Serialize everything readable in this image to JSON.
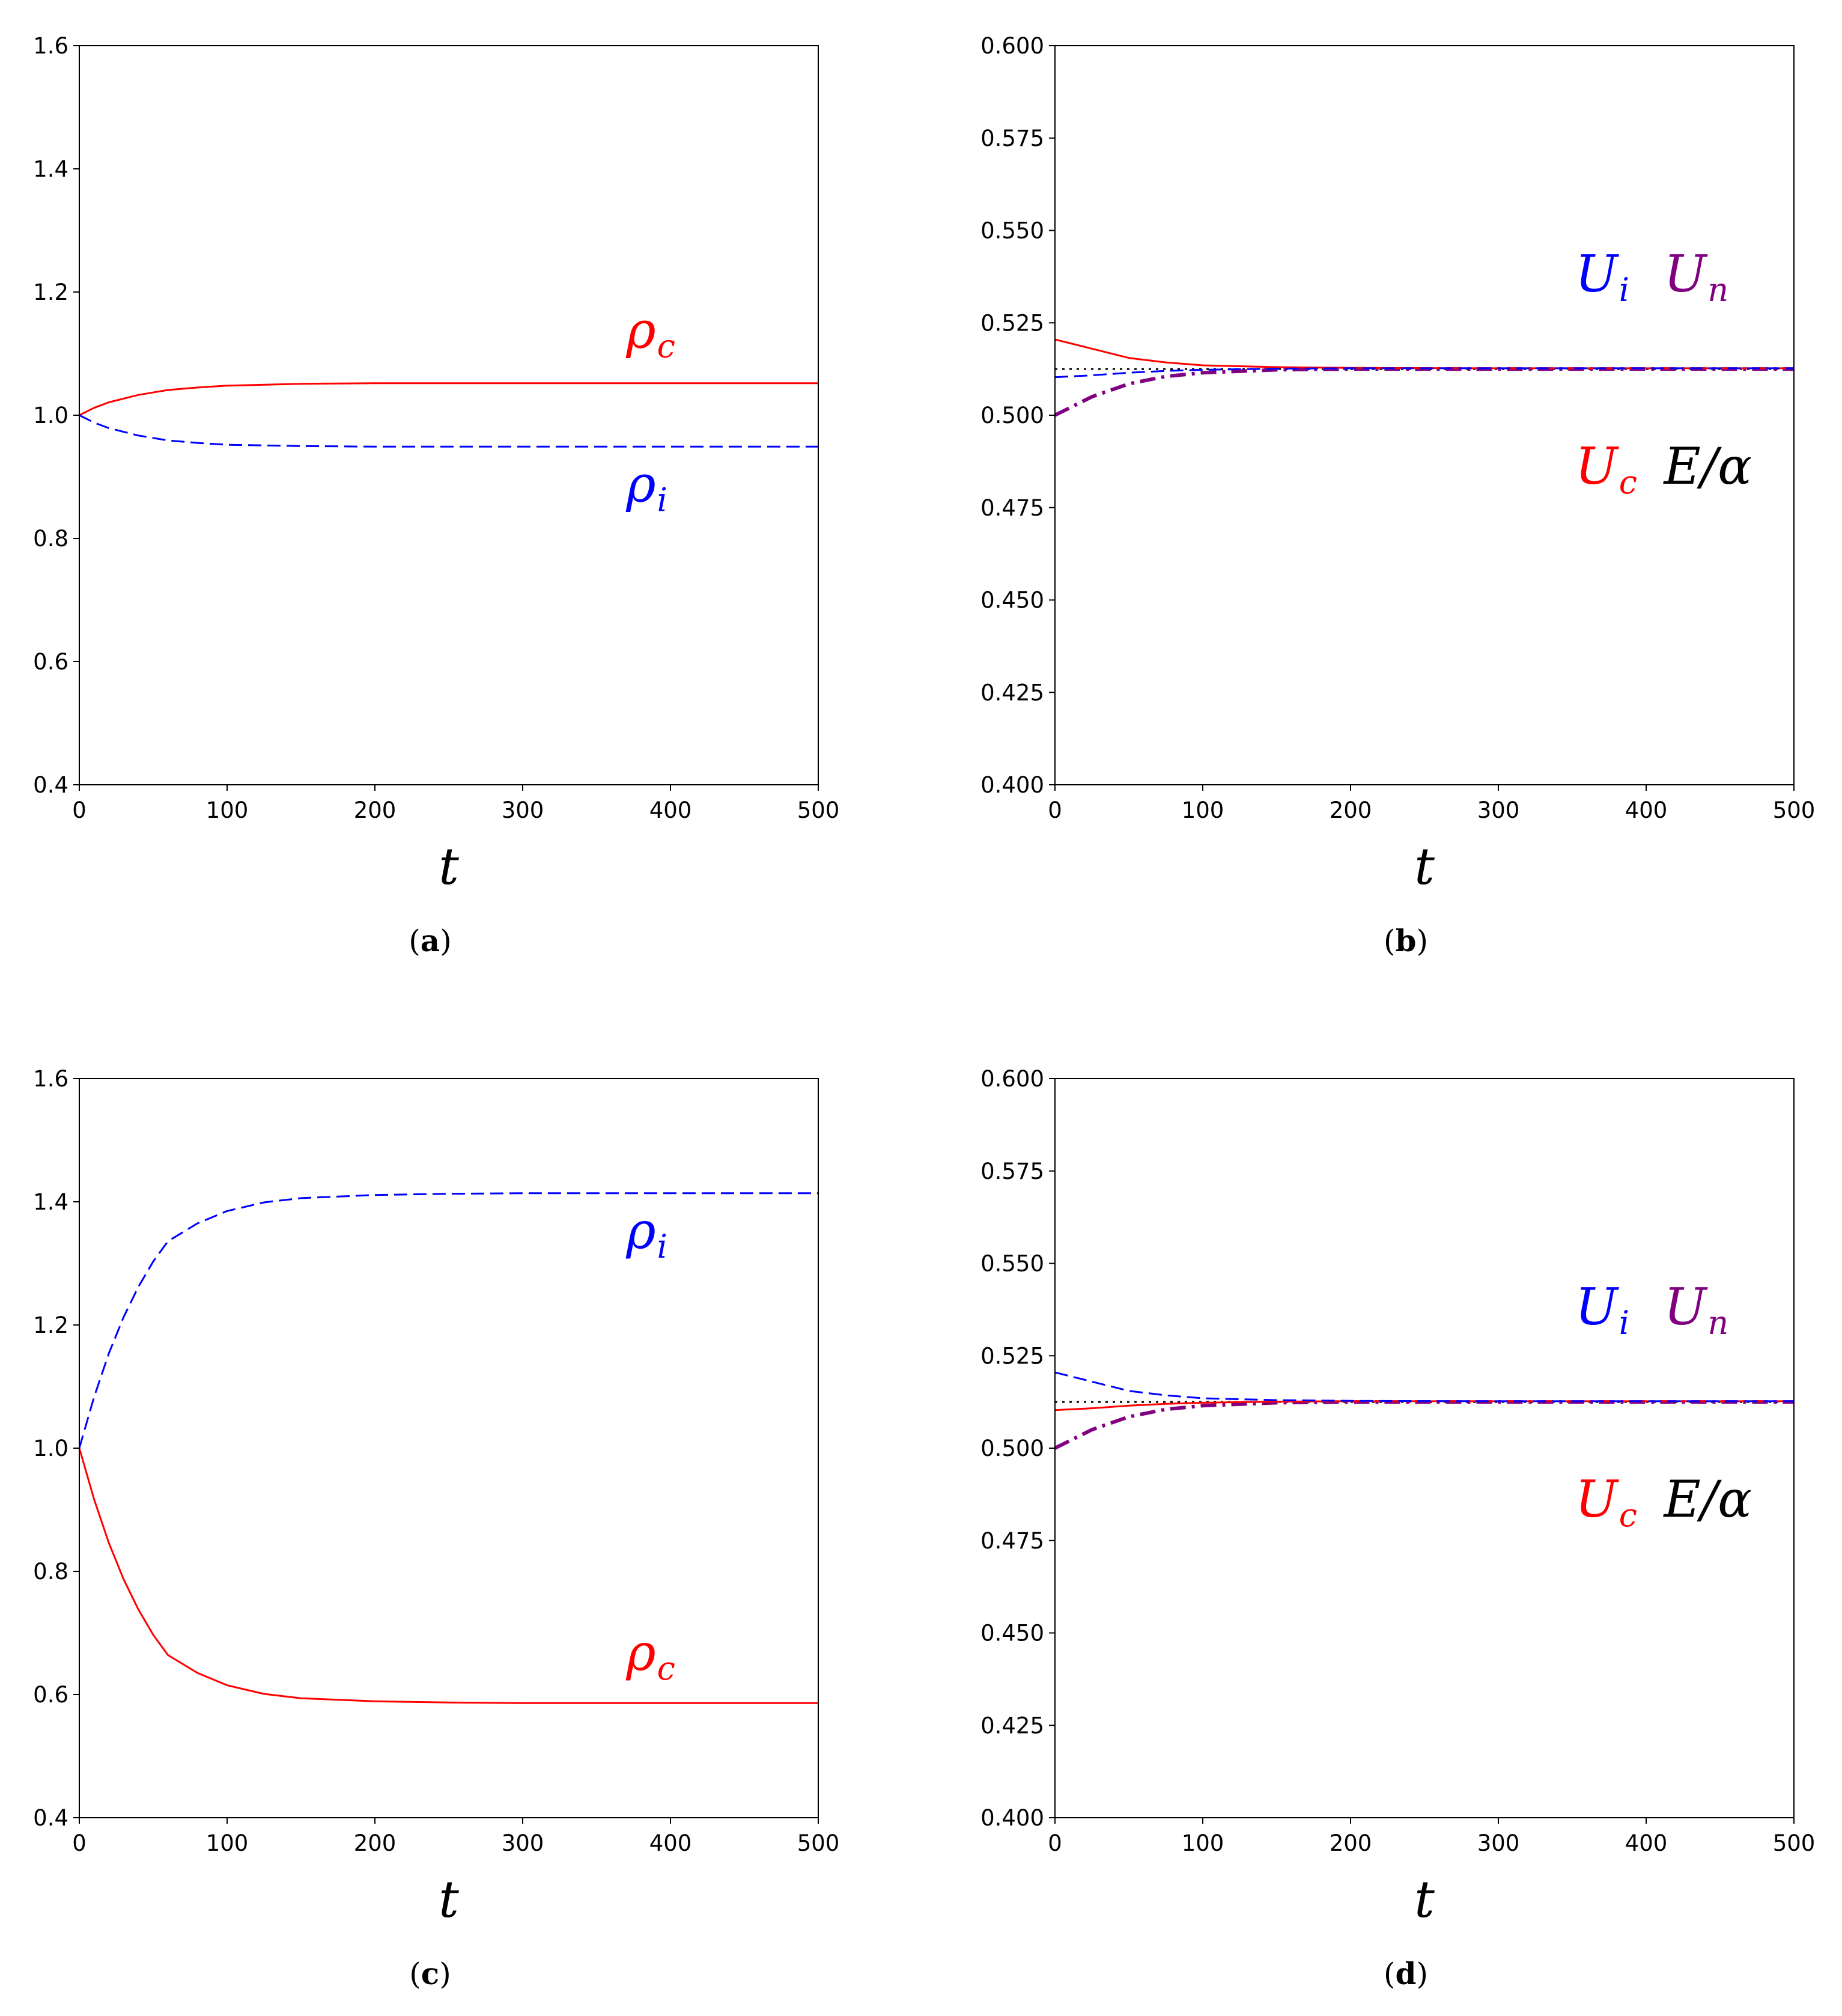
{
  "chart_data": [
    {
      "panel": "a",
      "caption_letter": "a",
      "type": "line",
      "xlabel": "t",
      "xlim": [
        0,
        500
      ],
      "ylim": [
        0.4,
        1.6
      ],
      "xticks": [
        0,
        100,
        200,
        300,
        400,
        500
      ],
      "yticks": [
        0.4,
        0.6,
        0.8,
        1.0,
        1.2,
        1.4,
        1.6
      ],
      "tick_decimals": 1,
      "series": [
        {
          "name": "rho_c",
          "color": "#ff0000",
          "style": "solid",
          "width": 3,
          "x": [
            0,
            10,
            20,
            40,
            60,
            80,
            100,
            150,
            200,
            300,
            400,
            500
          ],
          "values": [
            1.0,
            1.012,
            1.021,
            1.033,
            1.041,
            1.045,
            1.048,
            1.051,
            1.052,
            1.052,
            1.052,
            1.052
          ]
        },
        {
          "name": "rho_i",
          "color": "#0000ff",
          "style": "dashed",
          "width": 3,
          "x": [
            0,
            10,
            20,
            40,
            60,
            80,
            100,
            150,
            200,
            300,
            400,
            500
          ],
          "values": [
            1.0,
            0.988,
            0.979,
            0.967,
            0.959,
            0.955,
            0.952,
            0.95,
            0.949,
            0.949,
            0.949,
            0.949
          ]
        }
      ],
      "annotations": [
        {
          "base": "ρ",
          "sub": "c",
          "color": "#ff0000",
          "x": 370,
          "y": 1.11
        },
        {
          "base": "ρ",
          "sub": "i",
          "color": "#0000ff",
          "x": 370,
          "y": 0.86
        }
      ]
    },
    {
      "panel": "b",
      "caption_letter": "b",
      "type": "line",
      "xlabel": "t",
      "xlim": [
        0,
        500
      ],
      "ylim": [
        0.4,
        0.6
      ],
      "xticks": [
        0,
        100,
        200,
        300,
        400,
        500
      ],
      "yticks": [
        0.4,
        0.425,
        0.45,
        0.475,
        0.5,
        0.525,
        0.55,
        0.575,
        0.6
      ],
      "tick_decimals": 3,
      "series": [
        {
          "name": "E/alpha",
          "color": "#000000",
          "style": "dotted",
          "width": 3,
          "x": [
            0,
            500
          ],
          "values": [
            0.5125,
            0.5125
          ]
        },
        {
          "name": "U_n",
          "color": "#800080",
          "style": "dashdot",
          "width": 6,
          "x": [
            0,
            25,
            50,
            75,
            100,
            150,
            200,
            300,
            500
          ],
          "values": [
            0.5,
            0.505,
            0.5085,
            0.5105,
            0.5115,
            0.5123,
            0.5125,
            0.5125,
            0.5125
          ]
        },
        {
          "name": "U_c",
          "color": "#ff0000",
          "style": "solid",
          "width": 3,
          "x": [
            0,
            25,
            50,
            75,
            100,
            150,
            200,
            300,
            500
          ],
          "values": [
            0.5205,
            0.518,
            0.5155,
            0.5143,
            0.5135,
            0.513,
            0.5128,
            0.5127,
            0.5127
          ]
        },
        {
          "name": "U_i",
          "color": "#0000ff",
          "style": "dashed",
          "width": 3,
          "x": [
            0,
            25,
            50,
            75,
            100,
            150,
            200,
            300,
            500
          ],
          "values": [
            0.5103,
            0.5108,
            0.5115,
            0.512,
            0.5123,
            0.5126,
            0.5127,
            0.5127,
            0.5127
          ]
        }
      ],
      "annotations": [
        {
          "base": "U",
          "sub": "i",
          "color": "#0000ff",
          "x": 352,
          "y": 0.5335
        },
        {
          "base": "U",
          "sub": "n",
          "color": "#800080",
          "x": 412,
          "y": 0.5335
        },
        {
          "base": "U",
          "sub": "c",
          "color": "#ff0000",
          "x": 352,
          "y": 0.4815
        },
        {
          "base": "E/α",
          "sub": "",
          "color": "#000000",
          "x": 412,
          "y": 0.4815
        }
      ]
    },
    {
      "panel": "c",
      "caption_letter": "c",
      "type": "line",
      "xlabel": "t",
      "xlim": [
        0,
        500
      ],
      "ylim": [
        0.4,
        1.6
      ],
      "xticks": [
        0,
        100,
        200,
        300,
        400,
        500
      ],
      "yticks": [
        0.4,
        0.6,
        0.8,
        1.0,
        1.2,
        1.4,
        1.6
      ],
      "tick_decimals": 1,
      "series": [
        {
          "name": "rho_c",
          "color": "#ff0000",
          "style": "solid",
          "width": 3,
          "x": [
            0,
            10,
            20,
            30,
            40,
            50,
            60,
            80,
            100,
            125,
            150,
            200,
            250,
            300,
            400,
            500
          ],
          "values": [
            1.0,
            0.917,
            0.846,
            0.787,
            0.738,
            0.697,
            0.664,
            0.635,
            0.615,
            0.601,
            0.594,
            0.589,
            0.587,
            0.586,
            0.586,
            0.586
          ]
        },
        {
          "name": "rho_i",
          "color": "#0000ff",
          "style": "dashed",
          "width": 3,
          "x": [
            0,
            10,
            20,
            30,
            40,
            50,
            60,
            80,
            100,
            125,
            150,
            200,
            250,
            300,
            400,
            500
          ],
          "values": [
            1.0,
            1.083,
            1.154,
            1.213,
            1.262,
            1.303,
            1.336,
            1.365,
            1.385,
            1.399,
            1.406,
            1.411,
            1.413,
            1.414,
            1.414,
            1.414
          ]
        }
      ],
      "annotations": [
        {
          "base": "ρ",
          "sub": "i",
          "color": "#0000ff",
          "x": 370,
          "y": 1.325
        },
        {
          "base": "ρ",
          "sub": "c",
          "color": "#ff0000",
          "x": 370,
          "y": 0.64
        }
      ]
    },
    {
      "panel": "d",
      "caption_letter": "d",
      "type": "line",
      "xlabel": "t",
      "xlim": [
        0,
        500
      ],
      "ylim": [
        0.4,
        0.6
      ],
      "xticks": [
        0,
        100,
        200,
        300,
        400,
        500
      ],
      "yticks": [
        0.4,
        0.425,
        0.45,
        0.475,
        0.5,
        0.525,
        0.55,
        0.575,
        0.6
      ],
      "tick_decimals": 3,
      "series": [
        {
          "name": "E/alpha",
          "color": "#000000",
          "style": "dotted",
          "width": 3,
          "x": [
            0,
            500
          ],
          "values": [
            0.5125,
            0.5125
          ]
        },
        {
          "name": "U_n",
          "color": "#800080",
          "style": "dashdot",
          "width": 6,
          "x": [
            0,
            25,
            50,
            75,
            100,
            150,
            200,
            300,
            500
          ],
          "values": [
            0.5,
            0.505,
            0.5085,
            0.5105,
            0.5115,
            0.5123,
            0.5125,
            0.5125,
            0.5125
          ]
        },
        {
          "name": "U_c",
          "color": "#ff0000",
          "style": "solid",
          "width": 3,
          "x": [
            0,
            25,
            50,
            75,
            100,
            150,
            200,
            300,
            500
          ],
          "values": [
            0.5103,
            0.5108,
            0.5115,
            0.512,
            0.5123,
            0.5126,
            0.5127,
            0.5127,
            0.5127
          ]
        },
        {
          "name": "U_i",
          "color": "#0000ff",
          "style": "dashed",
          "width": 3,
          "x": [
            0,
            25,
            50,
            75,
            100,
            150,
            200,
            300,
            500
          ],
          "values": [
            0.5205,
            0.518,
            0.5155,
            0.5143,
            0.5135,
            0.513,
            0.5128,
            0.5127,
            0.5127
          ]
        }
      ],
      "annotations": [
        {
          "base": "U",
          "sub": "i",
          "color": "#0000ff",
          "x": 352,
          "y": 0.5335
        },
        {
          "base": "U",
          "sub": "n",
          "color": "#800080",
          "x": 412,
          "y": 0.5335
        },
        {
          "base": "U",
          "sub": "c",
          "color": "#ff0000",
          "x": 352,
          "y": 0.4815
        },
        {
          "base": "E/α",
          "sub": "",
          "color": "#000000",
          "x": 412,
          "y": 0.4815
        }
      ]
    }
  ]
}
